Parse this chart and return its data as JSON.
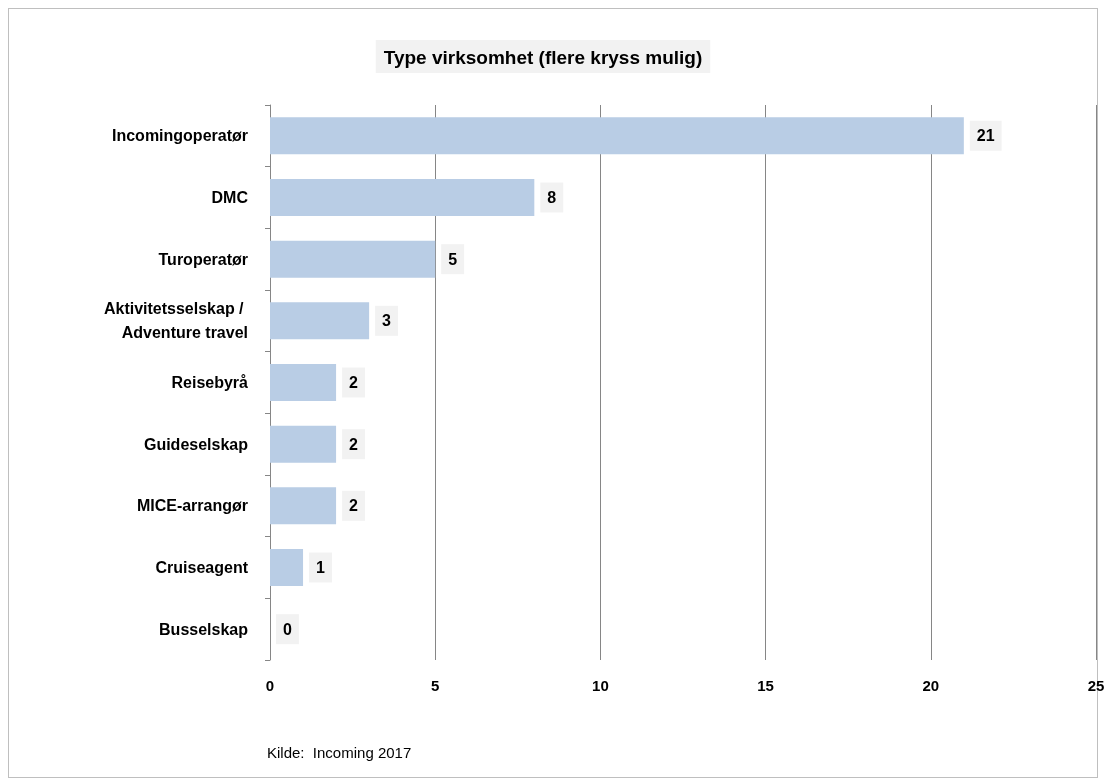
{
  "chart_data": {
    "type": "bar",
    "orientation": "horizontal",
    "title": "Type virksomhet (flere kryss mulig)",
    "categories": [
      "Incomingoperatør",
      "DMC",
      "Turoperatør",
      "Aktivitetsselskap / Adventure travel",
      "Reisebyrå",
      "Guideselskap",
      "MICE-arrangør",
      "Cruiseagent",
      "Busselskap"
    ],
    "values": [
      21,
      8,
      5,
      3,
      2,
      2,
      2,
      1,
      0
    ],
    "color": "#b9cde5",
    "xlim": [
      0,
      25
    ],
    "xticks": [
      0,
      5,
      10,
      15,
      20,
      25
    ],
    "grid": "x",
    "data_labels": true,
    "annotations": [
      "Kilde:  Incoming 2017"
    ]
  }
}
